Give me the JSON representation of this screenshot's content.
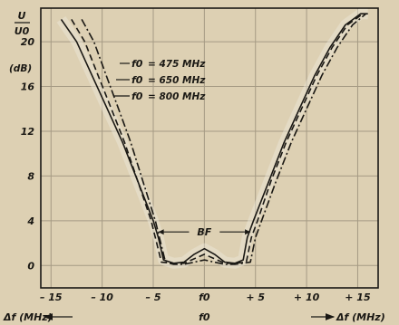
{
  "chart_data": {
    "type": "line",
    "title": "",
    "ylabel_num": "U",
    "ylabel_den": "U0",
    "yunit": "(dB)",
    "xlabel_left": "Δf (MHz)",
    "xlabel_right": "Δf (MHz)",
    "xlim": [
      -16,
      17
    ],
    "ylim": [
      -2,
      23
    ],
    "grid": true,
    "x_ticks": [
      -15,
      -10,
      -5,
      0,
      5,
      10,
      15
    ],
    "x_tick_labels": [
      "– 15",
      "– 10",
      "– 5",
      "f0",
      "+ 5",
      "+ 10",
      "+ 15"
    ],
    "center_label": "f0",
    "y_ticks": [
      0,
      4,
      8,
      12,
      16,
      20
    ],
    "y_tick_labels": [
      "0",
      "4",
      "8",
      "12",
      "16",
      "20"
    ],
    "bandwidth_label": "BF",
    "bandwidth_range": [
      -4.5,
      4.5
    ],
    "bandwidth_level": 3,
    "series": [
      {
        "name": "f0 = 475 MHz",
        "style": "solid",
        "x": [
          -14,
          -12.5,
          -11,
          -9.5,
          -8,
          -6.5,
          -5,
          -4.5,
          -4,
          -3,
          -2,
          -1,
          0,
          1,
          2,
          3,
          3.8,
          4.2,
          4.8,
          6.3,
          7.8,
          9.3,
          10.8,
          12.3,
          13.8,
          15.3,
          16
        ],
        "y": [
          22,
          20,
          17,
          14,
          11,
          7.5,
          4,
          2.5,
          0.5,
          0.2,
          0.3,
          1,
          1.5,
          1,
          0.3,
          0.2,
          0.5,
          2.5,
          4,
          7.5,
          11,
          14,
          17,
          19.5,
          21.5,
          22.5,
          22.5
        ]
      },
      {
        "name": "f0 = 650 MHz",
        "style": "dashed",
        "x": [
          -13,
          -11.7,
          -10.4,
          -9.1,
          -7.8,
          -6.5,
          -5.2,
          -4.8,
          -4.2,
          -3,
          -2,
          -1,
          0,
          1,
          2,
          3,
          4.1,
          4.6,
          5.2,
          6.5,
          8,
          9.5,
          11,
          12.5,
          14,
          15.5
        ],
        "y": [
          22,
          20,
          17,
          14,
          11,
          7.5,
          4,
          2.5,
          0.3,
          0.2,
          0.2,
          0.6,
          1,
          0.6,
          0.2,
          0.2,
          0.3,
          2.5,
          4,
          7.5,
          11,
          14,
          17,
          19.5,
          21.5,
          22.5
        ]
      },
      {
        "name": "f0 = 800 MHz",
        "style": "dashdot",
        "x": [
          -12,
          -10.8,
          -9.6,
          -8.4,
          -7.2,
          -6,
          -4.8,
          -4.4,
          -3.8,
          -3,
          -2,
          -1,
          0,
          1,
          2,
          3,
          4.5,
          5,
          5.6,
          7,
          8.5,
          10,
          11.5,
          13,
          14.5,
          15.8
        ],
        "y": [
          22,
          20,
          17,
          14,
          11,
          7.5,
          4,
          2.5,
          0.3,
          0.1,
          0.1,
          0.3,
          0.5,
          0.3,
          0.1,
          0.1,
          0.3,
          2.5,
          4,
          7.5,
          11,
          14,
          17,
          19.5,
          21.5,
          22.5
        ]
      }
    ],
    "legend_items": [
      {
        "prefix": "f0",
        "text": "= 475 MHz"
      },
      {
        "prefix": "f0",
        "text": "= 650 MHz"
      },
      {
        "prefix": "f0",
        "text": "= 800 MHz"
      }
    ]
  },
  "colors": {
    "paper": "#ddd0b3",
    "ink": "#1a1814",
    "grid": "#a59a84",
    "highlight": "#eee8dc"
  }
}
